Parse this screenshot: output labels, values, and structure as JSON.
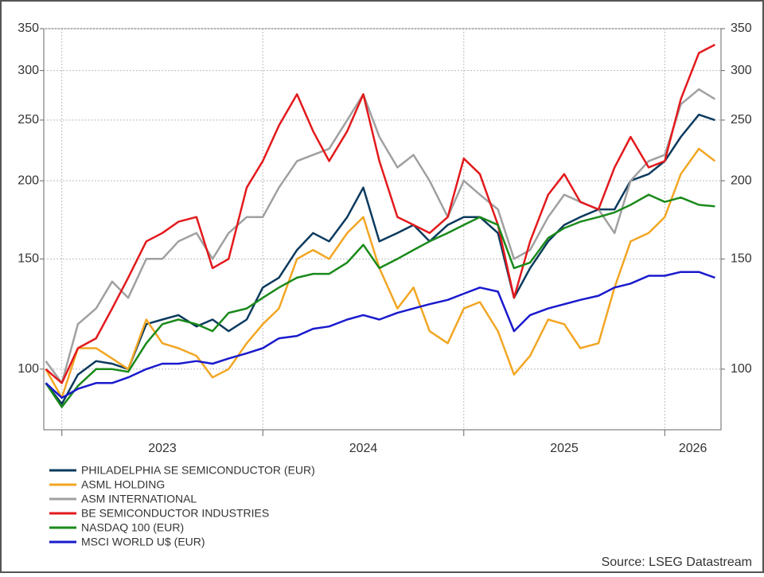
{
  "chart_data": {
    "type": "line",
    "log_scale": true,
    "grid": true,
    "legend": "bottom-left",
    "source": "Source: LSEG Datastream",
    "x": [
      2022.92,
      2023.0,
      2023.08,
      2023.17,
      2023.25,
      2023.33,
      2023.42,
      2023.5,
      2023.58,
      2023.67,
      2023.75,
      2023.83,
      2023.92,
      2024.0,
      2024.08,
      2024.17,
      2024.25,
      2024.33,
      2024.42,
      2024.5,
      2024.58,
      2024.67,
      2024.75,
      2024.83,
      2024.92,
      2025.0,
      2025.08,
      2025.17,
      2025.25,
      2025.33,
      2025.42,
      2025.5,
      2025.58,
      2025.67,
      2025.75,
      2025.83,
      2025.92,
      2026.0,
      2026.08,
      2026.17,
      2026.25
    ],
    "xlim": [
      2022.91,
      2026.28
    ],
    "xticks": [
      2023,
      2024,
      2025,
      2026
    ],
    "ylim": [
      80,
      350
    ],
    "yticks": [
      100,
      150,
      200,
      250,
      300,
      350
    ],
    "y2lim": [
      80,
      350
    ],
    "y2ticks": [
      100,
      150,
      200,
      250,
      300,
      350
    ],
    "series": [
      {
        "name": "PHILADELPHIA SE SEMICONDUCTOR (EUR)",
        "color": "#0b3a5e",
        "values": [
          95,
          88,
          98,
          103,
          102,
          100,
          118,
          120,
          122,
          117,
          120,
          115,
          120,
          135,
          140,
          155,
          165,
          160,
          175,
          195,
          160,
          165,
          170,
          160,
          170,
          175,
          175,
          165,
          130,
          145,
          160,
          170,
          175,
          180,
          180,
          200,
          205,
          215,
          235,
          255,
          250
        ]
      },
      {
        "name": "ASML HOLDING",
        "color": "#f2a623",
        "values": [
          100,
          90,
          108,
          108,
          104,
          100,
          120,
          110,
          108,
          105,
          97,
          100,
          110,
          118,
          125,
          150,
          155,
          150,
          165,
          175,
          145,
          125,
          135,
          115,
          110,
          125,
          128,
          115,
          98,
          105,
          120,
          118,
          108,
          110,
          135,
          160,
          165,
          175,
          205,
          225,
          215
        ]
      },
      {
        "name": "ASM INTERNATIONAL",
        "color": "#a0a0a0",
        "values": [
          103,
          95,
          118,
          125,
          138,
          130,
          150,
          150,
          160,
          165,
          150,
          165,
          175,
          175,
          195,
          215,
          220,
          225,
          250,
          275,
          235,
          210,
          220,
          200,
          175,
          200,
          190,
          180,
          150,
          155,
          175,
          190,
          185,
          180,
          165,
          200,
          215,
          220,
          265,
          280,
          270
        ]
      },
      {
        "name": "BE SEMICONDUCTOR INDUSTRIES",
        "color": "#e3191c",
        "values": [
          100,
          95,
          108,
          112,
          125,
          140,
          160,
          165,
          172,
          175,
          145,
          150,
          195,
          215,
          245,
          275,
          240,
          215,
          240,
          275,
          215,
          175,
          170,
          165,
          175,
          217,
          205,
          170,
          130,
          160,
          190,
          205,
          185,
          180,
          210,
          235,
          210,
          215,
          270,
          320,
          330
        ]
      },
      {
        "name": "NASDAQ 100 (EUR)",
        "color": "#1a8a1a",
        "values": [
          95,
          87,
          94,
          100,
          100,
          99,
          110,
          118,
          120,
          118,
          115,
          123,
          125,
          130,
          135,
          140,
          142,
          142,
          148,
          158,
          145,
          150,
          155,
          160,
          165,
          170,
          175,
          170,
          145,
          148,
          162,
          168,
          172,
          175,
          178,
          183,
          190,
          185,
          188,
          183,
          182
        ]
      },
      {
        "name": "MSCI WORLD U$ (EUR)",
        "color": "#1a1acd",
        "values": [
          95,
          90,
          93,
          95,
          95,
          97,
          100,
          102,
          102,
          103,
          102,
          104,
          106,
          108,
          112,
          113,
          116,
          117,
          120,
          122,
          120,
          123,
          125,
          127,
          129,
          132,
          135,
          133,
          115,
          122,
          125,
          127,
          129,
          131,
          135,
          137,
          141,
          141,
          143,
          143,
          140
        ]
      }
    ]
  }
}
